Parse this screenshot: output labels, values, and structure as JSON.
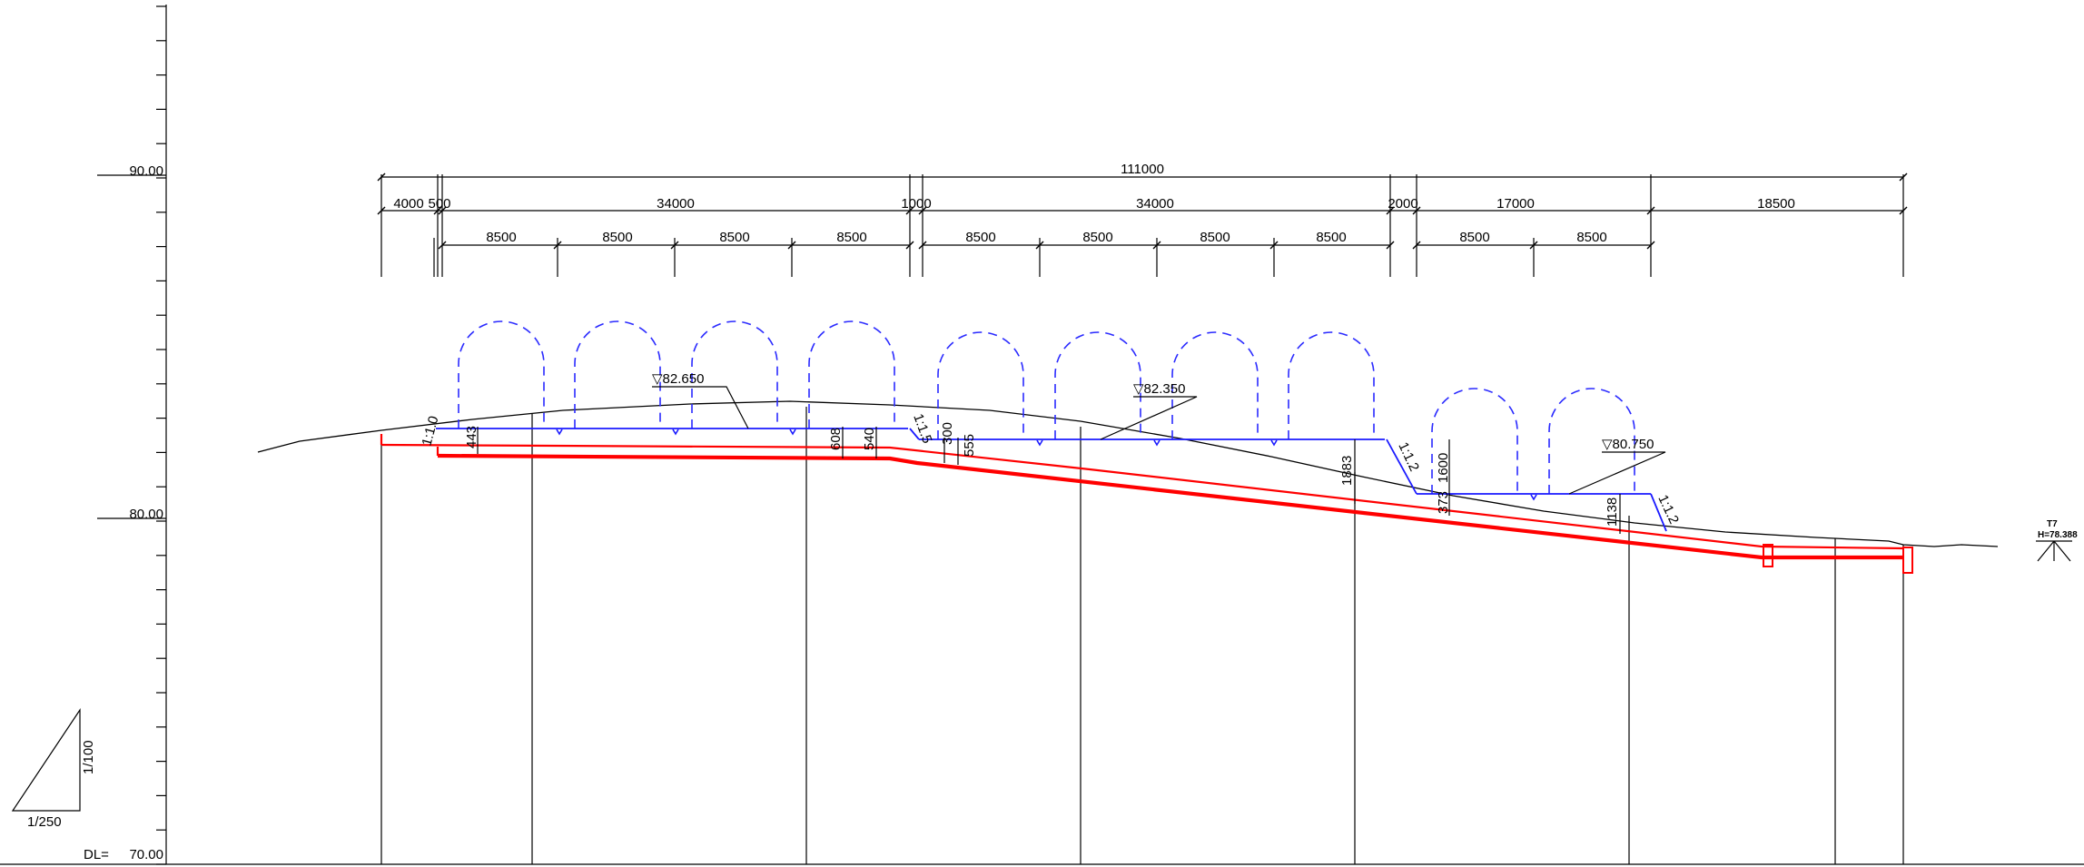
{
  "levels": {
    "top": "90.00",
    "mid": "80.00",
    "datum_label": "DL=",
    "datum_value": "70.00"
  },
  "dimensions": {
    "total": "111000",
    "row1": [
      "4000",
      "500",
      "34000",
      "1000",
      "34000",
      "2000",
      "17000",
      "18500"
    ],
    "row2": [
      "8500",
      "8500",
      "8500",
      "8500",
      "8500",
      "8500",
      "8500",
      "8500",
      "8500",
      "8500"
    ]
  },
  "elevations": {
    "e1": "▽82.650",
    "e2": "▽82.350",
    "e3": "▽80.750"
  },
  "slopes": {
    "s1": "1:1.0",
    "s2": "1:1.5",
    "s3": "1:1.2",
    "s4": "1:1.2"
  },
  "depths": [
    "443",
    "608",
    "540",
    "300",
    "555",
    "1883",
    "1600",
    "373",
    "1138"
  ],
  "scale": {
    "vertical": "1/100",
    "horizontal": "1/250"
  },
  "marker": {
    "name": "T7",
    "height": "H=78.388"
  },
  "colors": {
    "pipe": "#ff0000",
    "formation": "#1a1aff",
    "ground": "#000000"
  }
}
